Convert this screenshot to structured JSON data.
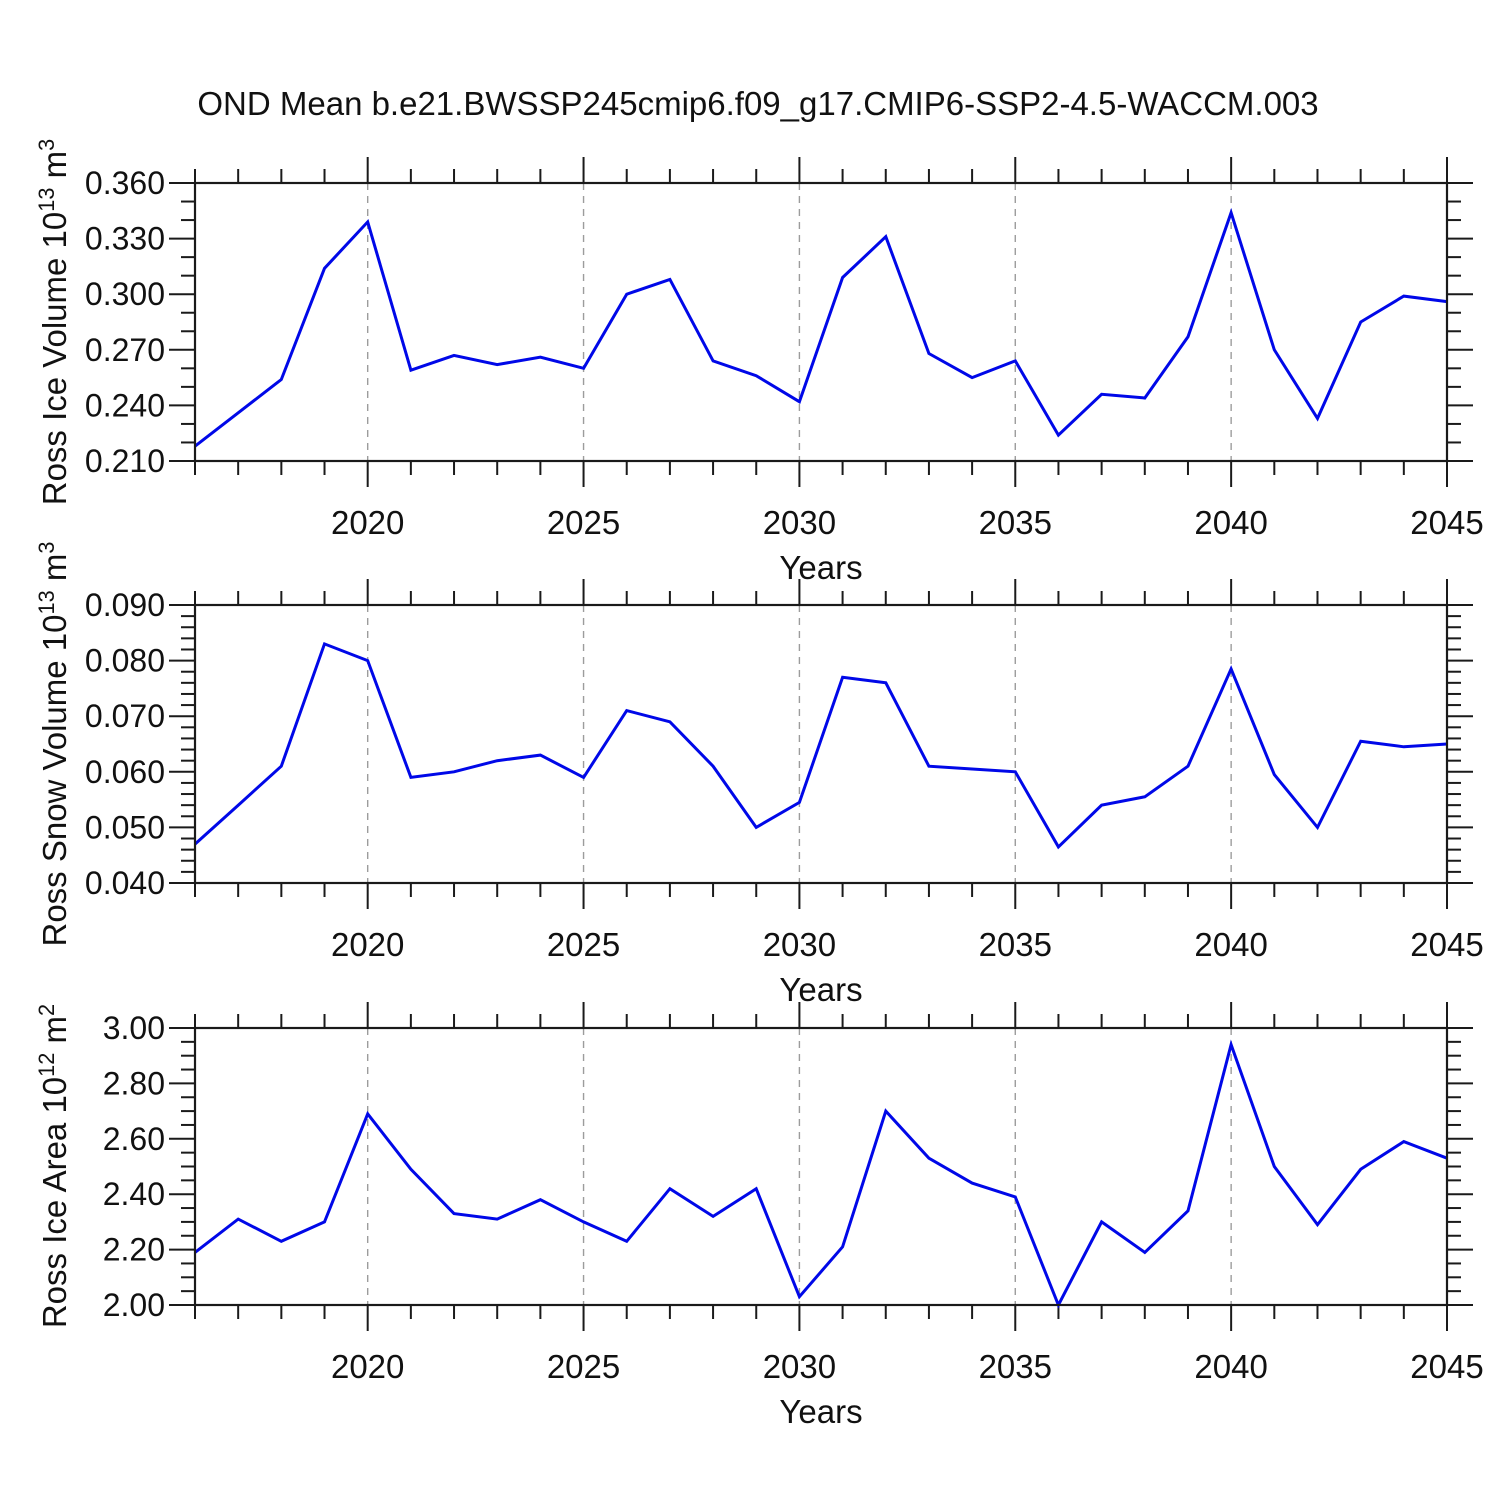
{
  "title": "OND Mean b.e21.BWSSP245cmip6.f09_g17.CMIP6-SSP2-4.5-WACCM.003",
  "colors": {
    "line_blue": "#0008e8",
    "grid_gray": "#9c9c9c",
    "axis_black": "#1a1a1a"
  },
  "chart_data": [
    {
      "type": "line",
      "series_name": "Ross Ice Volume",
      "ylabel": {
        "pre": "Ross Ice Volume 10",
        "sup1": "13",
        "mid": " m",
        "sup2": "3"
      },
      "xlabel": "Years",
      "x": [
        2016,
        2017,
        2018,
        2019,
        2020,
        2021,
        2022,
        2023,
        2024,
        2025,
        2026,
        2027,
        2028,
        2029,
        2030,
        2031,
        2032,
        2033,
        2034,
        2035,
        2036,
        2037,
        2038,
        2039,
        2040,
        2041,
        2042,
        2043,
        2044,
        2045
      ],
      "values": [
        0.218,
        0.236,
        0.254,
        0.314,
        0.339,
        0.259,
        0.267,
        0.262,
        0.266,
        0.26,
        0.3,
        0.308,
        0.264,
        0.256,
        0.242,
        0.309,
        0.331,
        0.268,
        0.255,
        0.264,
        0.224,
        0.246,
        0.244,
        0.277,
        0.344,
        0.27,
        0.233,
        0.285,
        0.299,
        0.296
      ],
      "xlim": [
        2016,
        2045
      ],
      "ylim": [
        0.21,
        0.36
      ],
      "yticks": [
        {
          "v": 0.36,
          "label": "0.360"
        },
        {
          "v": 0.33,
          "label": "0.330"
        },
        {
          "v": 0.3,
          "label": "0.300"
        },
        {
          "v": 0.27,
          "label": "0.270"
        },
        {
          "v": 0.24,
          "label": "0.240"
        },
        {
          "v": 0.21,
          "label": "0.210"
        }
      ],
      "y_minor_step": 0.01,
      "x_major_ticks": [
        {
          "v": 2020,
          "label": "2020"
        },
        {
          "v": 2025,
          "label": "2025"
        },
        {
          "v": 2030,
          "label": "2030"
        },
        {
          "v": 2035,
          "label": "2035"
        },
        {
          "v": 2040,
          "label": "2040"
        },
        {
          "v": 2045,
          "label": "2045"
        }
      ],
      "x_minor_step": 1,
      "x_gridlines": [
        2020,
        2025,
        2030,
        2035,
        2040
      ],
      "grid": "vertical dashed at major x ticks",
      "legend": "none"
    },
    {
      "type": "line",
      "series_name": "Ross Snow Volume",
      "ylabel": {
        "pre": "Ross Snow Volume 10",
        "sup1": "13",
        "mid": " m",
        "sup2": "3"
      },
      "xlabel": "Years",
      "x": [
        2016,
        2017,
        2018,
        2019,
        2020,
        2021,
        2022,
        2023,
        2024,
        2025,
        2026,
        2027,
        2028,
        2029,
        2030,
        2031,
        2032,
        2033,
        2034,
        2035,
        2036,
        2037,
        2038,
        2039,
        2040,
        2041,
        2042,
        2043,
        2044,
        2045
      ],
      "values": [
        0.047,
        0.054,
        0.061,
        0.083,
        0.08,
        0.059,
        0.06,
        0.062,
        0.063,
        0.059,
        0.071,
        0.069,
        0.061,
        0.05,
        0.0545,
        0.077,
        0.076,
        0.061,
        0.0605,
        0.06,
        0.0465,
        0.054,
        0.0555,
        0.061,
        0.0785,
        0.0595,
        0.05,
        0.0655,
        0.0645,
        0.065
      ],
      "xlim": [
        2016,
        2045
      ],
      "ylim": [
        0.04,
        0.09
      ],
      "yticks": [
        {
          "v": 0.09,
          "label": "0.090"
        },
        {
          "v": 0.08,
          "label": "0.080"
        },
        {
          "v": 0.07,
          "label": "0.070"
        },
        {
          "v": 0.06,
          "label": "0.060"
        },
        {
          "v": 0.05,
          "label": "0.050"
        },
        {
          "v": 0.04,
          "label": "0.040"
        }
      ],
      "y_minor_step": 0.002,
      "x_major_ticks": [
        {
          "v": 2020,
          "label": "2020"
        },
        {
          "v": 2025,
          "label": "2025"
        },
        {
          "v": 2030,
          "label": "2030"
        },
        {
          "v": 2035,
          "label": "2035"
        },
        {
          "v": 2040,
          "label": "2040"
        },
        {
          "v": 2045,
          "label": "2045"
        }
      ],
      "x_minor_step": 1,
      "x_gridlines": [
        2020,
        2025,
        2030,
        2035,
        2040
      ],
      "grid": "vertical dashed at major x ticks",
      "legend": "none"
    },
    {
      "type": "line",
      "series_name": "Ross Ice Area",
      "ylabel": {
        "pre": "Ross Ice Area 10",
        "sup1": "12",
        "mid": " m",
        "sup2": "2"
      },
      "xlabel": "Years",
      "x": [
        2016,
        2017,
        2018,
        2019,
        2020,
        2021,
        2022,
        2023,
        2024,
        2025,
        2026,
        2027,
        2028,
        2029,
        2030,
        2031,
        2032,
        2033,
        2034,
        2035,
        2036,
        2037,
        2038,
        2039,
        2040,
        2041,
        2042,
        2043,
        2044,
        2045
      ],
      "values": [
        2.19,
        2.31,
        2.23,
        2.3,
        2.69,
        2.49,
        2.33,
        2.31,
        2.38,
        2.3,
        2.23,
        2.42,
        2.32,
        2.42,
        2.03,
        2.21,
        2.7,
        2.53,
        2.44,
        2.39,
        2.0,
        2.3,
        2.19,
        2.34,
        2.94,
        2.5,
        2.29,
        2.49,
        2.59,
        2.53
      ],
      "xlim": [
        2016,
        2045
      ],
      "ylim": [
        2.0,
        3.0
      ],
      "yticks": [
        {
          "v": 3.0,
          "label": "3.00"
        },
        {
          "v": 2.8,
          "label": "2.80"
        },
        {
          "v": 2.6,
          "label": "2.60"
        },
        {
          "v": 2.4,
          "label": "2.40"
        },
        {
          "v": 2.2,
          "label": "2.20"
        },
        {
          "v": 2.0,
          "label": "2.00"
        }
      ],
      "y_minor_step": 0.05,
      "x_major_ticks": [
        {
          "v": 2020,
          "label": "2020"
        },
        {
          "v": 2025,
          "label": "2025"
        },
        {
          "v": 2030,
          "label": "2030"
        },
        {
          "v": 2035,
          "label": "2035"
        },
        {
          "v": 2040,
          "label": "2040"
        },
        {
          "v": 2045,
          "label": "2045"
        }
      ],
      "x_minor_step": 1,
      "x_gridlines": [
        2020,
        2025,
        2030,
        2035,
        2040
      ],
      "grid": "vertical dashed at major x ticks",
      "legend": "none"
    }
  ]
}
